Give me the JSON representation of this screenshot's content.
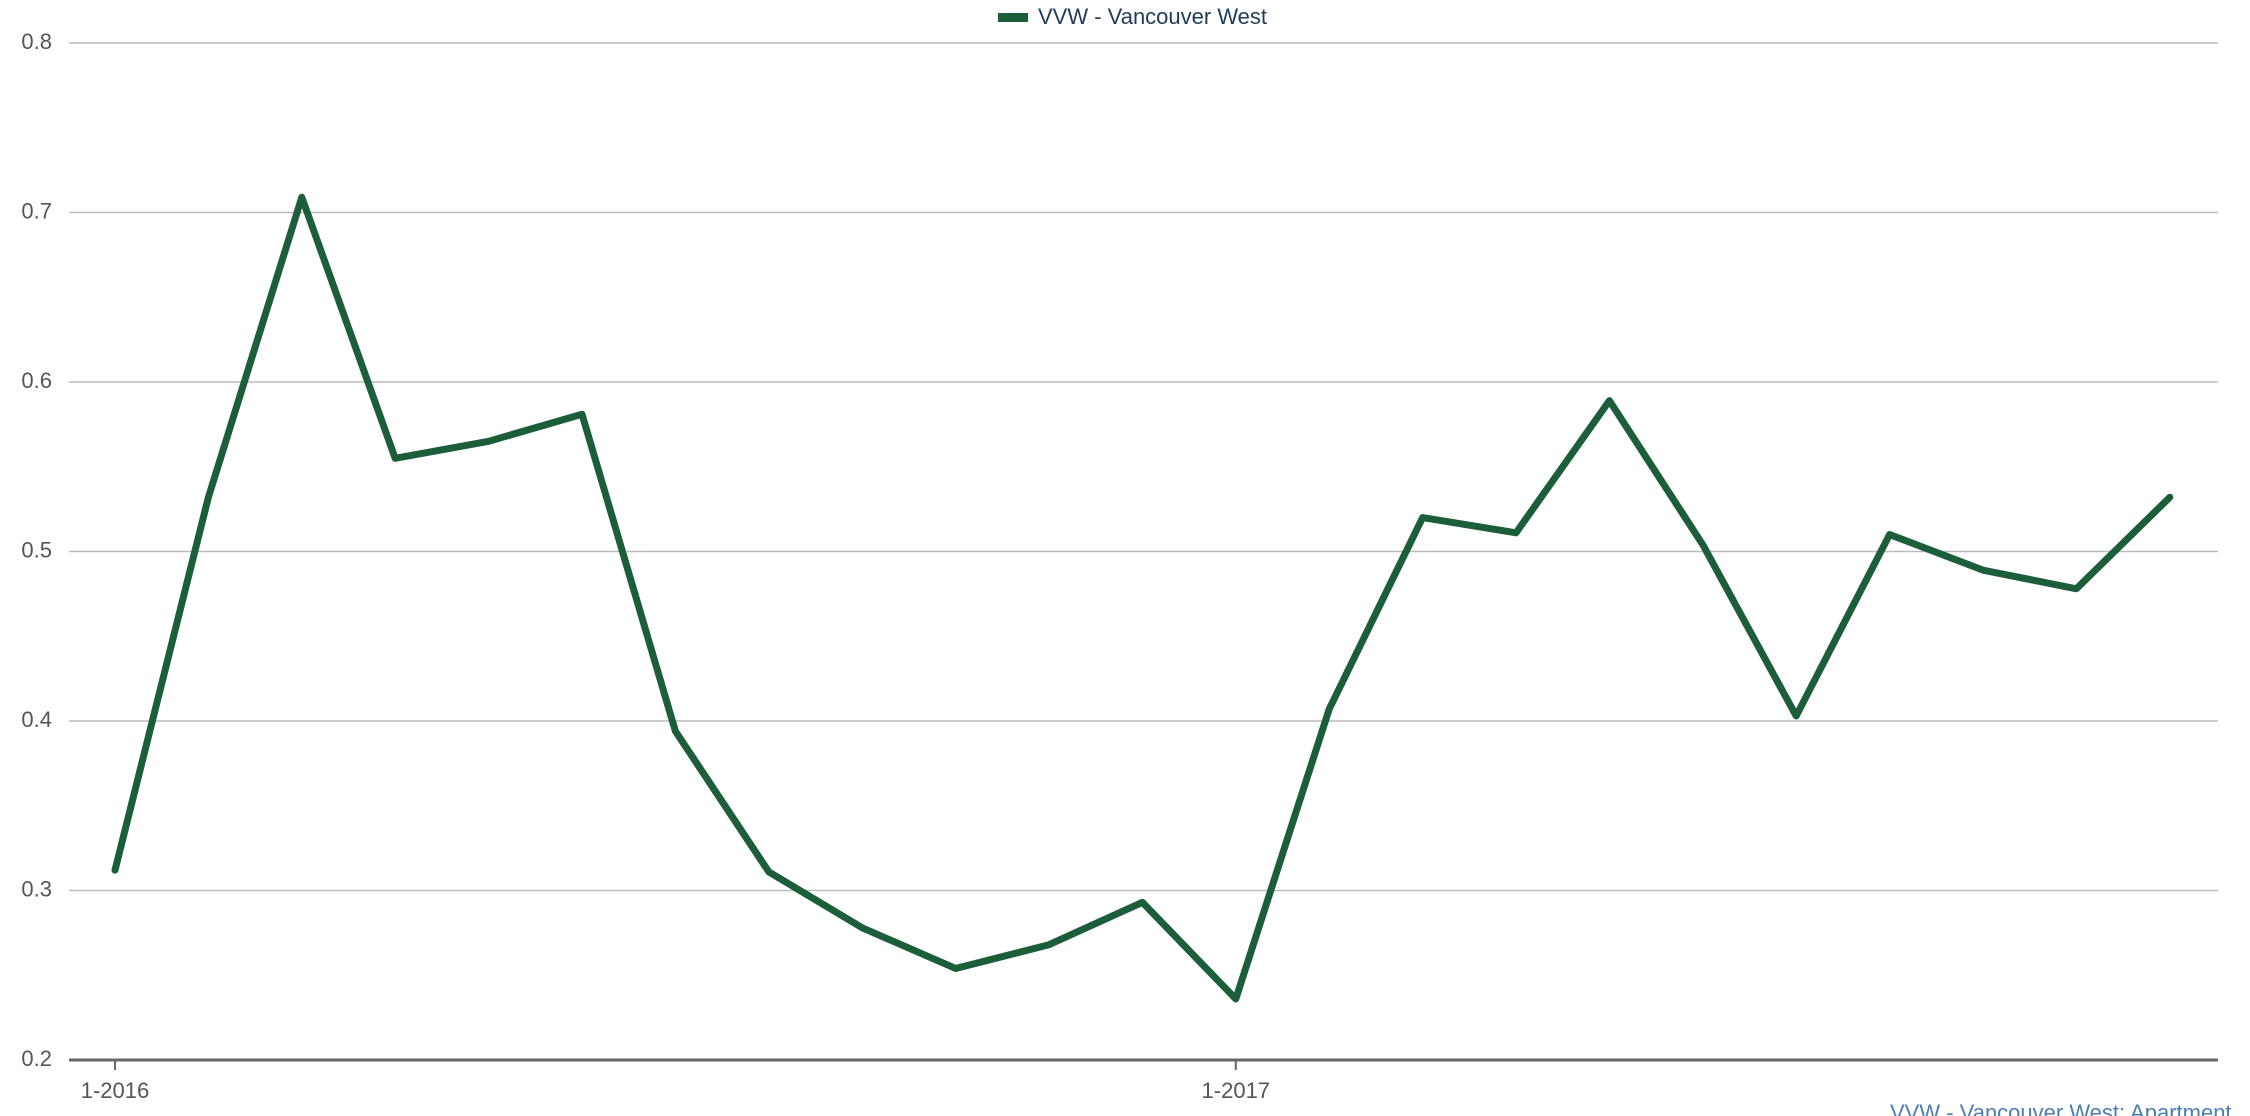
{
  "chart_data": {
    "type": "line",
    "categories": [
      "1-2016",
      null,
      null,
      null,
      null,
      null,
      null,
      null,
      null,
      null,
      null,
      null,
      "1-2017",
      null,
      null,
      null,
      null,
      null,
      null,
      null,
      null,
      null,
      null
    ],
    "series": [
      {
        "name": "VVW - Vancouver West",
        "color": "#1c5e3a",
        "values": [
          0.312,
          0.532,
          0.709,
          0.555,
          0.565,
          0.581,
          0.394,
          0.311,
          0.278,
          0.254,
          0.268,
          0.293,
          0.236,
          0.407,
          0.52,
          0.511,
          0.589,
          0.504,
          0.403,
          0.51,
          0.489,
          0.478,
          0.532
        ]
      }
    ],
    "ylim": [
      0.2,
      0.8
    ],
    "yticks": [
      0.2,
      0.3,
      0.4,
      0.5,
      0.6,
      0.7,
      0.8
    ],
    "grid": true,
    "legend": "top",
    "caption": "VVW - Vancouver West: Apartment"
  }
}
